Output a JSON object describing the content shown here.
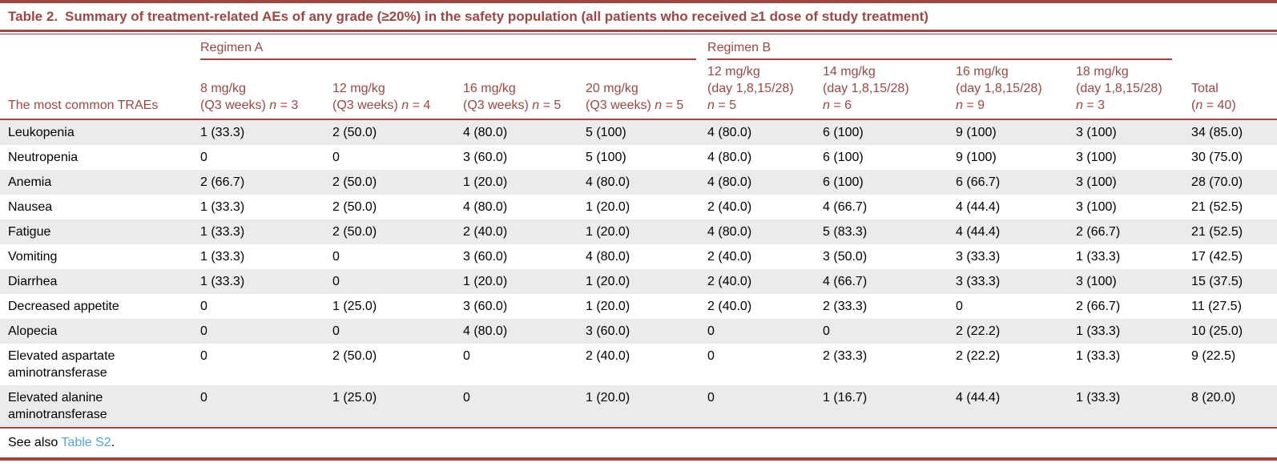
{
  "colors": {
    "accent": "#9c4744",
    "link": "#53a4d8",
    "zebra": "#ebebeb",
    "body_text": "#000000"
  },
  "title": {
    "label": "Table 2.",
    "text": "Summary of treatment-related AEs of any grade (≥20%) in the safety population (all patients who received ≥1 dose of study treatment)"
  },
  "table": {
    "row_header_label": "The most common TRAEs",
    "group_a_label": "Regimen A",
    "group_b_label": "Regimen B",
    "columns": [
      {
        "dose": "8 mg/kg",
        "schedule": "(Q3 weeks) ",
        "n_italic": "n",
        "n_rest": " = 3"
      },
      {
        "dose": "12 mg/kg",
        "schedule": "(Q3 weeks) ",
        "n_italic": "n",
        "n_rest": " = 4"
      },
      {
        "dose": "16 mg/kg",
        "schedule": "(Q3 weeks) ",
        "n_italic": "n",
        "n_rest": " = 5"
      },
      {
        "dose": "20 mg/kg",
        "schedule": "(Q3 weeks) ",
        "n_italic": "n",
        "n_rest": " = 5"
      },
      {
        "dose": "12 mg/kg",
        "schedule": "(day 1,8,15/28)",
        "n_italic": "n",
        "n_rest": " = 5"
      },
      {
        "dose": "14 mg/kg",
        "schedule": "(day 1,8,15/28)",
        "n_italic": "n",
        "n_rest": " = 6"
      },
      {
        "dose": "16 mg/kg",
        "schedule": "(day 1,8,15/28)",
        "n_italic": "n",
        "n_rest": " = 9"
      },
      {
        "dose": "18 mg/kg",
        "schedule": "(day 1,8,15/28)",
        "n_italic": "n",
        "n_rest": " = 3"
      },
      {
        "total_label": "Total",
        "paren_open": "(",
        "n_italic": "n",
        "n_rest": " = 40)"
      }
    ],
    "rows": [
      {
        "label": "Leukopenia",
        "values": [
          "1 (33.3)",
          "2 (50.0)",
          "4 (80.0)",
          "5 (100)",
          "4 (80.0)",
          "6 (100)",
          "9 (100)",
          "3 (100)",
          "34 (85.0)"
        ]
      },
      {
        "label": "Neutropenia",
        "values": [
          "0",
          "0",
          "3 (60.0)",
          "5 (100)",
          "4 (80.0)",
          "6 (100)",
          "9 (100)",
          "3 (100)",
          "30 (75.0)"
        ]
      },
      {
        "label": "Anemia",
        "values": [
          "2 (66.7)",
          "2 (50.0)",
          "1 (20.0)",
          "4 (80.0)",
          "4 (80.0)",
          "6 (100)",
          "6 (66.7)",
          "3 (100)",
          "28 (70.0)"
        ]
      },
      {
        "label": "Nausea",
        "values": [
          "1 (33.3)",
          "2 (50.0)",
          "4 (80.0)",
          "1 (20.0)",
          "2 (40.0)",
          "4 (66.7)",
          "4 (44.4)",
          "3 (100)",
          "21 (52.5)"
        ]
      },
      {
        "label": "Fatigue",
        "values": [
          "1 (33.3)",
          "2 (50.0)",
          "2 (40.0)",
          "1 (20.0)",
          "4 (80.0)",
          "5 (83.3)",
          "4 (44.4)",
          "2 (66.7)",
          "21 (52.5)"
        ]
      },
      {
        "label": "Vomiting",
        "values": [
          "1 (33.3)",
          "0",
          "3 (60.0)",
          "4 (80.0)",
          "2 (40.0)",
          "3 (50.0)",
          "3 (33.3)",
          "1 (33.3)",
          "17 (42.5)"
        ]
      },
      {
        "label": "Diarrhea",
        "values": [
          "1 (33.3)",
          "0",
          "1 (20.0)",
          "1 (20.0)",
          "2 (40.0)",
          "4 (66.7)",
          "3 (33.3)",
          "3 (100)",
          "15 (37.5)"
        ]
      },
      {
        "label": "Decreased appetite",
        "values": [
          "0",
          "1 (25.0)",
          "3 (60.0)",
          "1 (20.0)",
          "2 (40.0)",
          "2 (33.3)",
          "0",
          "2 (66.7)",
          "11 (27.5)"
        ]
      },
      {
        "label": "Alopecia",
        "values": [
          "0",
          "0",
          "4 (80.0)",
          "3 (60.0)",
          "0",
          "0",
          "2 (22.2)",
          "1 (33.3)",
          "10 (25.0)"
        ]
      },
      {
        "label": "Elevated aspartate aminotransferase",
        "values": [
          "0",
          "2 (50.0)",
          "0",
          "2 (40.0)",
          "0",
          "2 (33.3)",
          "2 (22.2)",
          "1 (33.3)",
          "9 (22.5)"
        ]
      },
      {
        "label": "Elevated alanine aminotransferase",
        "values": [
          "0",
          "1 (25.0)",
          "0",
          "1 (20.0)",
          "0",
          "1 (16.7)",
          "4 (44.4)",
          "1 (33.3)",
          "8 (20.0)"
        ]
      }
    ]
  },
  "footnote": {
    "prefix": "See also ",
    "link": "Table S2",
    "suffix": "."
  }
}
